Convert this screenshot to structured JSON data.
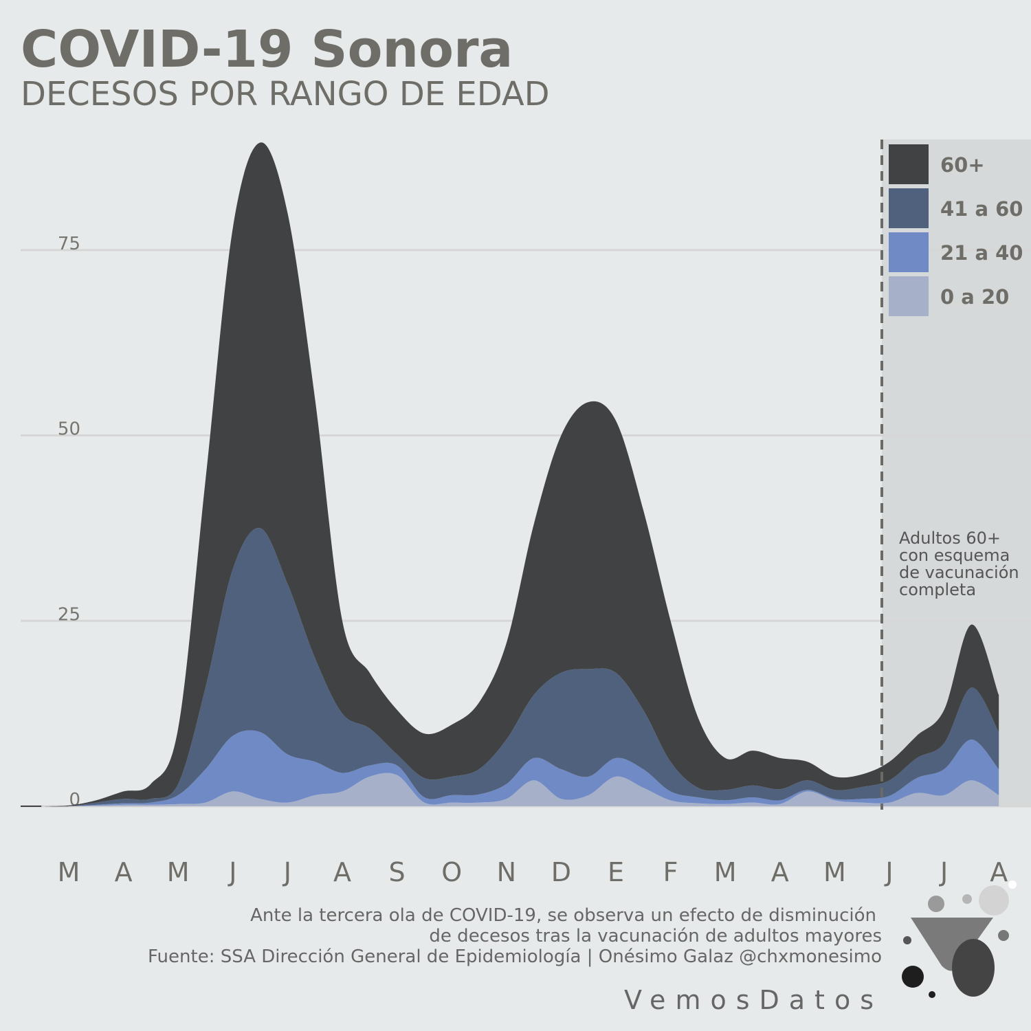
{
  "chart_data": {
    "type": "stacked-area",
    "title": "COVID-19 Sonora",
    "subtitle": "DECESOS POR RANGO DE EDAD",
    "categories": [
      null,
      "M",
      null,
      "A",
      null,
      "M",
      null,
      "J",
      null,
      "J",
      null,
      "A",
      null,
      "S",
      null,
      "O",
      null,
      "N",
      null,
      "D",
      null,
      "E",
      null,
      "F",
      null,
      "M",
      null,
      "A",
      null,
      "M",
      null,
      "J",
      null,
      "J",
      null,
      "A"
    ],
    "series": [
      {
        "name": "60+",
        "color": "#404244",
        "values": [
          0,
          0.1,
          0.3,
          1,
          2,
          7.5,
          28,
          46,
          52,
          50,
          35,
          12.5,
          7.5,
          6,
          6,
          7,
          9,
          13,
          23,
          32,
          36,
          34,
          27,
          19,
          9.5,
          4.3,
          4.7,
          4.2,
          2.5,
          1.8,
          1.7,
          2.5,
          3,
          4.5,
          8.5,
          5
        ]
      },
      {
        "name": "41 a 60",
        "color": "#4f617c",
        "values": [
          0,
          0,
          0.3,
          0.6,
          0.5,
          1.5,
          11,
          22.5,
          27.5,
          23,
          14,
          8,
          5,
          1.5,
          2.6,
          2.5,
          3.4,
          6,
          8.5,
          13,
          14.5,
          11.5,
          8,
          4,
          1.3,
          1.4,
          1.6,
          1.5,
          1.3,
          1.2,
          1.6,
          2.1,
          2.7,
          3.5,
          7,
          5
        ]
      },
      {
        "name": "21 a 40",
        "color": "#6f8ac4",
        "values": [
          0,
          0,
          0.1,
          0.2,
          0.3,
          1.2,
          4.5,
          7.5,
          9,
          6.5,
          4.5,
          2.5,
          1.5,
          1.3,
          0.7,
          1,
          1.1,
          2,
          3,
          4,
          2.5,
          2.5,
          2.5,
          1.2,
          0.8,
          0.5,
          0.7,
          0.5,
          0.2,
          0.2,
          0.5,
          0.9,
          2,
          3.5,
          5.5,
          3.5
        ]
      },
      {
        "name": "0 a 20",
        "color": "#a6b1c9",
        "values": [
          0,
          0,
          0.1,
          0.2,
          0.2,
          0.3,
          0.5,
          2,
          1,
          0.5,
          1.5,
          2,
          4,
          4.2,
          0.5,
          0.5,
          0.5,
          1,
          3.5,
          1,
          1.5,
          4,
          2.5,
          0.8,
          0.4,
          0.3,
          0.5,
          0.3,
          2,
          0.8,
          0.5,
          0.5,
          1.8,
          1.5,
          3.5,
          1.5
        ]
      }
    ],
    "ylim": [
      0,
      90
    ],
    "yticks": [
      0,
      25,
      50,
      75
    ],
    "grid": true,
    "legend": "upper right",
    "annotation": [
      "Adultos 60+",
      "con esquema",
      "de vacunación",
      "completa"
    ],
    "footnotes": [
      "Ante la tercera ola de COVID-19, se observa un efecto de disminución",
      "de decesos tras la vacunación de adultos mayores",
      "Fuente: SSA Dirección General de Epidemiología | Onésimo Galaz @chxmonesimo"
    ],
    "brand": "VemosDatos"
  }
}
